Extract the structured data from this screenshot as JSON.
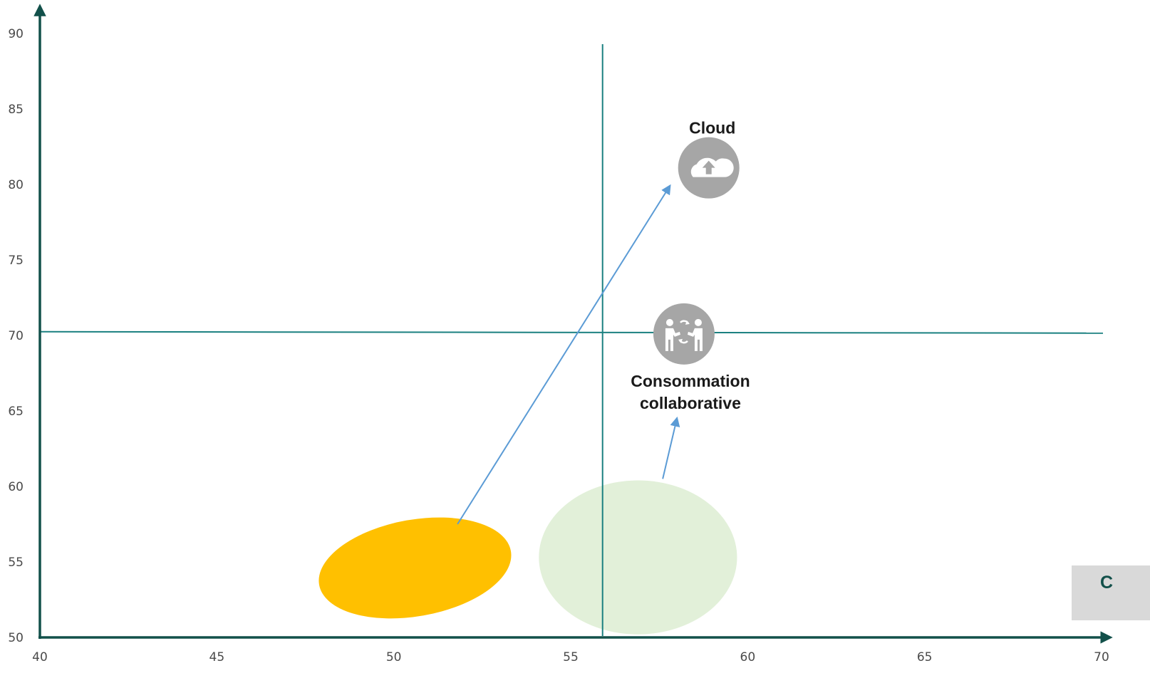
{
  "colors": {
    "axis": "#12504a",
    "divider": "#1a8080",
    "arrow": "#5b9bd5",
    "icon_bg": "#a6a6a6",
    "ellipse_a": "#ffc000",
    "ellipse_b": "#e2f0d9"
  },
  "chart_data": {
    "type": "scatter",
    "title": "",
    "xlabel": "",
    "ylabel": "",
    "xlim": [
      40,
      70
    ],
    "ylim": [
      50,
      90
    ],
    "x_ticks": [
      40,
      45,
      50,
      55,
      60,
      65,
      70
    ],
    "y_ticks": [
      50,
      55,
      60,
      65,
      70,
      75,
      80,
      85,
      90
    ],
    "grid": false,
    "divider_lines": {
      "x": 55.9,
      "y": 70.2
    },
    "ellipses": [
      {
        "name": "",
        "color": "#ffc000",
        "cx": 50.6,
        "cy": 54.6,
        "rx": 2.75,
        "ry": 3.2,
        "rotation": -10
      },
      {
        "name": "",
        "color": "#e2f0d9",
        "cx": 56.9,
        "cy": 55.3,
        "rx": 2.8,
        "ry": 5.1,
        "rotation": 0
      }
    ],
    "points": [
      {
        "label": "Cloud",
        "icon": "cloud-upload-icon",
        "x": 58.9,
        "y": 81.1
      },
      {
        "label": "Consommation collaborative",
        "label_lines": [
          "Consommation",
          "collaborative"
        ],
        "icon": "people-exchange-icon",
        "x": 58.2,
        "y": 70.1
      }
    ],
    "arrows": [
      {
        "from": [
          51.8,
          57.5
        ],
        "to": [
          57.8,
          79.9
        ]
      },
      {
        "from": [
          57.6,
          60.5
        ],
        "to": [
          58.0,
          64.5
        ]
      }
    ]
  },
  "legend_box": {
    "text": "C"
  }
}
